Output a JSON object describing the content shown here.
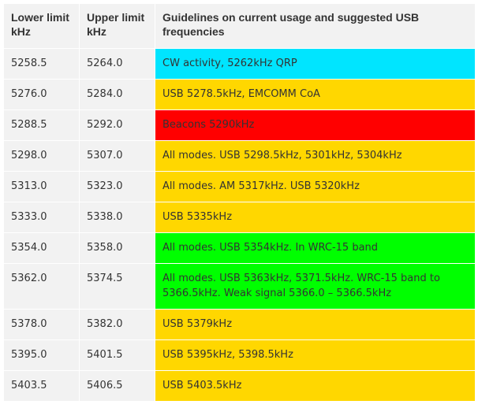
{
  "table": {
    "headers": {
      "lower": "Lower limit kHz",
      "upper": "Upper limit kHz",
      "guidelines": "Guidelines on current usage and suggested USB frequencies"
    },
    "rows": [
      {
        "lower": "5258.5",
        "upper": "5264.0",
        "guideline": "CW activity, 5262kHz QRP",
        "color": "#00e5ff"
      },
      {
        "lower": "5276.0",
        "upper": "5284.0",
        "guideline": "USB 5278.5kHz, EMCOMM CoA",
        "color": "#ffd700"
      },
      {
        "lower": "5288.5",
        "upper": "5292.0",
        "guideline": "Beacons 5290kHz",
        "color": "#ff0000"
      },
      {
        "lower": "5298.0",
        "upper": "5307.0",
        "guideline": "All modes. USB 5298.5kHz, 5301kHz, 5304kHz",
        "color": "#ffd700"
      },
      {
        "lower": "5313.0",
        "upper": "5323.0",
        "guideline": "All modes. AM 5317kHz. USB 5320kHz",
        "color": "#ffd700"
      },
      {
        "lower": "5333.0",
        "upper": "5338.0",
        "guideline": "USB 5335kHz",
        "color": "#ffd700"
      },
      {
        "lower": "5354.0",
        "upper": "5358.0",
        "guideline": "All modes. USB 5354kHz. In WRC-15 band",
        "color": "#00ff00"
      },
      {
        "lower": "5362.0",
        "upper": "5374.5",
        "guideline": "All modes. USB 5363kHz, 5371.5kHz. WRC-15 band to 5366.5kHz. Weak signal 5366.0 – 5366.5kHz",
        "color": "#00ff00"
      },
      {
        "lower": "5378.0",
        "upper": "5382.0",
        "guideline": "USB 5379kHz",
        "color": "#ffd700"
      },
      {
        "lower": "5395.0",
        "upper": "5401.5",
        "guideline": "USB 5395kHz, 5398.5kHz",
        "color": "#ffd700"
      },
      {
        "lower": "5403.5",
        "upper": "5406.5",
        "guideline": "USB 5403.5kHz",
        "color": "#ffd700"
      }
    ]
  }
}
